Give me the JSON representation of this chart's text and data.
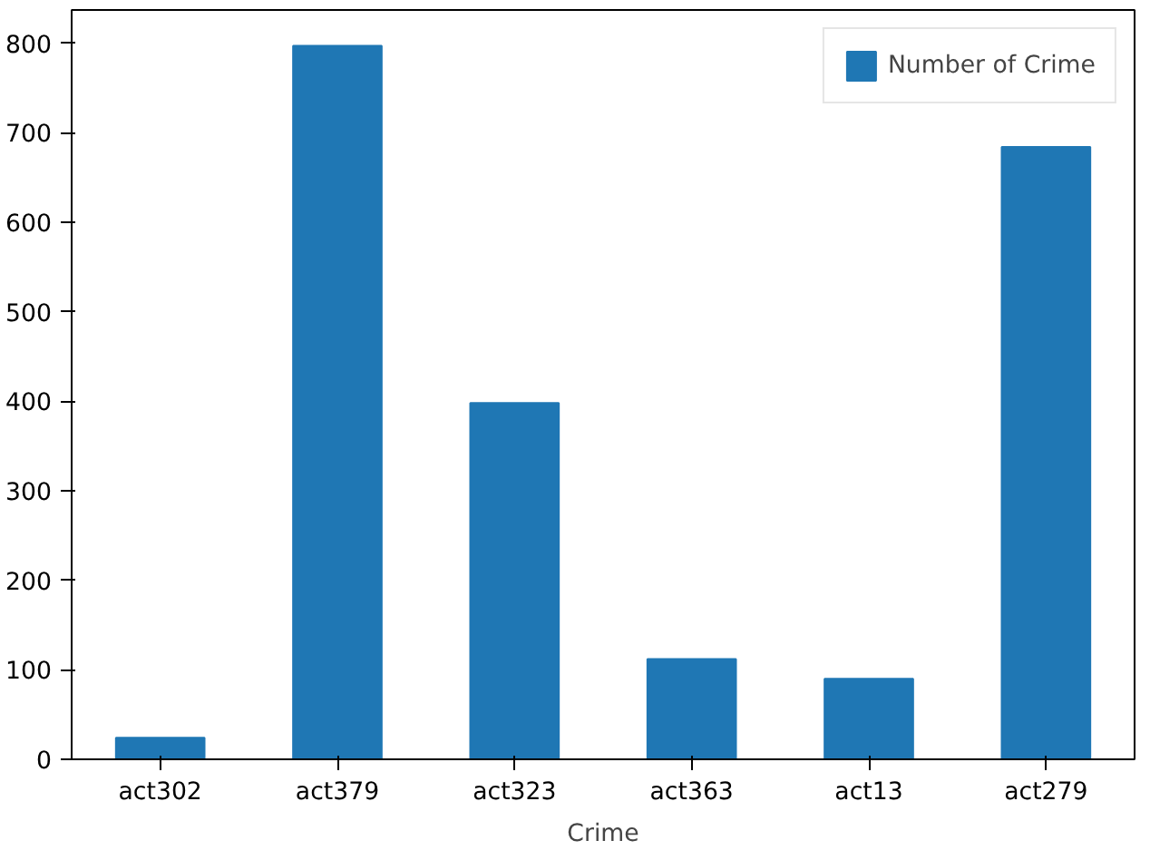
{
  "chart_data": {
    "type": "bar",
    "xlabel": "Crime",
    "categories": [
      "act302",
      "act379",
      "act323",
      "act363",
      "act13",
      "act279"
    ],
    "series": [
      {
        "name": "Number of Crime",
        "color": "#1f77b4",
        "values": [
          24,
          797,
          398,
          112,
          90,
          684
        ]
      }
    ],
    "ylim": [
      0,
      837
    ],
    "yticks": [
      0,
      100,
      200,
      300,
      400,
      500,
      600,
      700,
      800
    ],
    "legend": "top right",
    "grid": false
  }
}
